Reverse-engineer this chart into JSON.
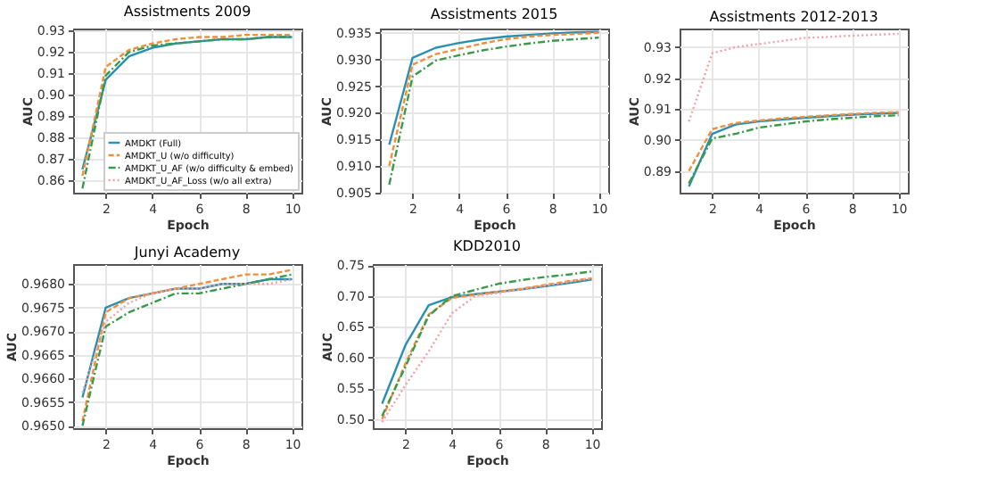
{
  "chart_data": [
    {
      "type": "line",
      "title": "Assistments 2009",
      "xlabel": "Epoch",
      "ylabel": "AUC",
      "x": [
        1,
        2,
        3,
        4,
        5,
        6,
        7,
        8,
        9,
        10
      ],
      "xlim": [
        0.6,
        10.4
      ],
      "xticks": [
        2,
        4,
        6,
        8,
        10
      ],
      "ylim": [
        0.854,
        0.931
      ],
      "yticks": [
        0.86,
        0.87,
        0.88,
        0.89,
        {
          "value": 0.9,
          "label": "0.90"
        },
        0.91,
        0.92,
        0.93
      ],
      "grid": true,
      "legend": "bottom right",
      "series": [
        {
          "name": "AMDKT (Full)",
          "color": "#2a8fb0",
          "line_style": "solid",
          "values": [
            0.865,
            0.907,
            0.918,
            0.922,
            0.924,
            0.925,
            0.926,
            0.926,
            0.927,
            0.927
          ]
        },
        {
          "name": "AMDKT_U (w/o difficulty)",
          "color": "#f28e3b",
          "line_style": "dashed",
          "values": [
            0.862,
            0.913,
            0.921,
            0.924,
            0.926,
            0.927,
            0.927,
            0.928,
            0.928,
            0.928
          ]
        },
        {
          "name": "AMDKT_U_AF (w/o difficulty & embed)",
          "color": "#3a9a4a",
          "line_style": "dashdot",
          "values": [
            0.856,
            0.909,
            0.92,
            0.923,
            0.924,
            0.925,
            0.926,
            0.926,
            0.927,
            0.927
          ]
        },
        {
          "name": "AMDKT_U_AF_Loss (w/o all extra)",
          "color": "#f2a0a8",
          "line_style": "dotted",
          "values": [
            null,
            null,
            null,
            null,
            null,
            null,
            null,
            null,
            null,
            null
          ]
        }
      ]
    },
    {
      "type": "line",
      "title": "Assistments 2015",
      "xlabel": "Epoch",
      "ylabel": "AUC",
      "x": [
        1,
        2,
        3,
        4,
        5,
        6,
        7,
        8,
        9,
        10
      ],
      "xlim": [
        0.6,
        10.4
      ],
      "xticks": [
        2,
        4,
        6,
        8,
        10
      ],
      "ylim": [
        0.905,
        0.9358
      ],
      "yticks": [
        0.905,
        {
          "value": 0.91,
          "label": "0.910"
        },
        0.915,
        {
          "value": 0.92,
          "label": "0.920"
        },
        0.925,
        {
          "value": 0.93,
          "label": "0.930"
        },
        0.935
      ],
      "grid": true,
      "series": [
        {
          "color": "#2a8fb0",
          "line_style": "solid",
          "values": [
            0.914,
            0.9303,
            0.9322,
            0.9331,
            0.9338,
            0.9343,
            0.9346,
            0.9349,
            0.9351,
            0.9352
          ]
        },
        {
          "color": "#f28e3b",
          "line_style": "dashed",
          "values": [
            0.91,
            0.929,
            0.931,
            0.932,
            0.933,
            0.9338,
            0.9343,
            0.9346,
            0.9348,
            0.935
          ]
        },
        {
          "color": "#3a9a4a",
          "line_style": "dashdot",
          "values": [
            0.9065,
            0.9268,
            0.9298,
            0.9308,
            0.9317,
            0.9324,
            0.933,
            0.9335,
            0.9338,
            0.9341
          ]
        },
        {
          "color": "#f2a0a8",
          "line_style": "dotted",
          "values": [
            null,
            null,
            null,
            null,
            null,
            null,
            null,
            null,
            null,
            null
          ]
        }
      ]
    },
    {
      "type": "line",
      "title": "Assistments 2012-2013",
      "xlabel": "Epoch",
      "ylabel": "AUC",
      "x": [
        1,
        2,
        3,
        4,
        5,
        6,
        7,
        8,
        9,
        10
      ],
      "xlim": [
        0.6,
        10.4
      ],
      "xticks": [
        2,
        4,
        6,
        8,
        10
      ],
      "ylim": [
        0.883,
        0.936
      ],
      "yticks": [
        0.89,
        {
          "value": 0.9,
          "label": "0.90"
        },
        0.91,
        0.92,
        0.93
      ],
      "grid": true,
      "series": [
        {
          "color": "#2a8fb0",
          "line_style": "solid",
          "values": [
            0.885,
            0.902,
            0.905,
            0.906,
            0.9066,
            0.9072,
            0.9077,
            0.9082,
            0.9085,
            0.9088
          ]
        },
        {
          "color": "#f28e3b",
          "line_style": "dashed",
          "values": [
            0.89,
            0.9035,
            0.9055,
            0.9063,
            0.907,
            0.9075,
            0.908,
            0.9084,
            0.9088,
            0.909
          ]
        },
        {
          "color": "#3a9a4a",
          "line_style": "dashdot",
          "values": [
            0.886,
            0.9005,
            0.902,
            0.904,
            0.905,
            0.906,
            0.9067,
            0.9072,
            0.9077,
            0.908
          ]
        },
        {
          "color": "#f2a0a8",
          "line_style": "dotted",
          "values": [
            0.906,
            0.928,
            0.93,
            0.931,
            0.932,
            0.933,
            0.9333,
            0.9337,
            0.934,
            0.9343
          ]
        }
      ]
    },
    {
      "type": "line",
      "title": "Junyi Academy",
      "xlabel": "Epoch",
      "ylabel": "AUC",
      "x": [
        1,
        2,
        3,
        4,
        5,
        6,
        7,
        8,
        9,
        10
      ],
      "xlim": [
        0.6,
        10.4
      ],
      "xticks": [
        2,
        4,
        6,
        8,
        10
      ],
      "ylim": [
        0.96495,
        0.96842
      ],
      "yticks": [
        {
          "value": 0.965,
          "label": "0.9650"
        },
        {
          "value": 0.9655,
          "label": "0.9655"
        },
        {
          "value": 0.966,
          "label": "0.9660"
        },
        {
          "value": 0.9665,
          "label": "0.9665"
        },
        {
          "value": 0.967,
          "label": "0.9670"
        },
        {
          "value": 0.9675,
          "label": "0.9675"
        },
        {
          "value": 0.968,
          "label": "0.9680"
        }
      ],
      "grid": true,
      "series": [
        {
          "color": "#2a8fb0",
          "line_style": "solid",
          "values": [
            0.9656,
            0.9675,
            0.9677,
            0.9678,
            0.9679,
            0.9679,
            0.968,
            0.968,
            0.9681,
            0.9681
          ]
        },
        {
          "color": "#f28e3b",
          "line_style": "dashed",
          "values": [
            0.9651,
            0.9674,
            0.9677,
            0.9678,
            0.9679,
            0.968,
            0.9681,
            0.9682,
            0.9682,
            0.9683
          ]
        },
        {
          "color": "#3a9a4a",
          "line_style": "dashdot",
          "values": [
            0.965,
            0.9671,
            0.9674,
            0.9676,
            0.9678,
            0.9678,
            0.9679,
            0.968,
            0.9681,
            0.9682
          ]
        },
        {
          "color": "#f2a0a8",
          "line_style": "dotted",
          "values": [
            0.9657,
            0.9672,
            0.9676,
            0.9678,
            0.9679,
            0.9679,
            0.968,
            0.968,
            0.968,
            0.9681
          ]
        }
      ]
    },
    {
      "type": "line",
      "title": "KDD2010",
      "xlabel": "Epoch",
      "ylabel": "AUC",
      "x": [
        1,
        2,
        3,
        4,
        5,
        6,
        7,
        8,
        9,
        10
      ],
      "xlim": [
        0.6,
        10.4
      ],
      "xticks": [
        2,
        4,
        6,
        8,
        10
      ],
      "ylim": [
        0.485,
        0.752
      ],
      "yticks": [
        {
          "value": 0.5,
          "label": "0.50"
        },
        0.55,
        {
          "value": 0.6,
          "label": "0.60"
        },
        0.65,
        {
          "value": 0.7,
          "label": "0.70"
        },
        0.75
      ],
      "grid": true,
      "series": [
        {
          "color": "#2a8fb0",
          "line_style": "solid",
          "values": [
            0.525,
            0.62,
            0.685,
            0.698,
            0.703,
            0.707,
            0.711,
            0.716,
            0.721,
            0.727
          ]
        },
        {
          "color": "#f28e3b",
          "line_style": "dashed",
          "values": [
            0.5,
            0.59,
            0.67,
            0.697,
            0.702,
            0.707,
            0.712,
            0.718,
            0.724,
            0.729
          ]
        },
        {
          "color": "#3a9a4a",
          "line_style": "dashdot",
          "values": [
            0.505,
            0.585,
            0.668,
            0.7,
            0.71,
            0.72,
            0.726,
            0.731,
            0.735,
            0.74
          ]
        },
        {
          "color": "#f2a0a8",
          "line_style": "dotted",
          "values": [
            0.495,
            0.555,
            0.61,
            0.672,
            0.7,
            0.705,
            0.711,
            0.717,
            0.723,
            0.729
          ]
        }
      ]
    }
  ]
}
